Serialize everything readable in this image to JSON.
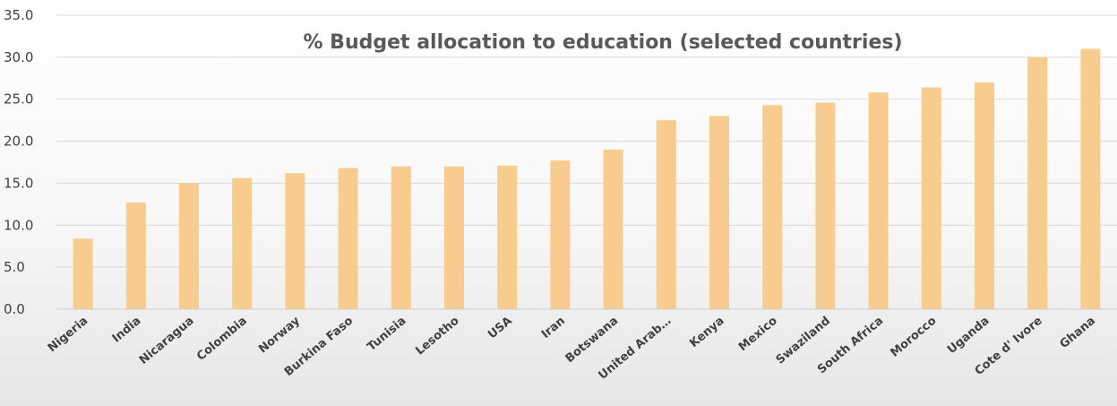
{
  "chart_data": {
    "type": "bar",
    "title": "% Budget allocation to education (selected countries)",
    "xlabel": "",
    "ylabel": "",
    "ylim": [
      0,
      35
    ],
    "yticks": [
      "0.0",
      "5.0",
      "10.0",
      "15.0",
      "20.0",
      "25.0",
      "30.0",
      "35.0"
    ],
    "grid": true,
    "legend": "none",
    "bar_color": "#F8CB8F",
    "categories": [
      "Nigeria",
      "India",
      "Nicaragua",
      "Colombia",
      "Norway",
      "Burkina Faso",
      "Tunisia",
      "Lesotho",
      "USA",
      "Iran",
      "Botswana",
      "United Arab…",
      "Kenya",
      "Mexico",
      "Swaziland",
      "South Africa",
      "Morocco",
      "Uganda",
      "Cote d' Ivore",
      "Ghana"
    ],
    "values": [
      8.4,
      12.7,
      15.0,
      15.6,
      16.2,
      16.8,
      17.0,
      17.0,
      17.1,
      17.7,
      19.0,
      22.5,
      23.0,
      24.3,
      24.6,
      25.8,
      26.4,
      27.0,
      30.0,
      31.0
    ]
  }
}
